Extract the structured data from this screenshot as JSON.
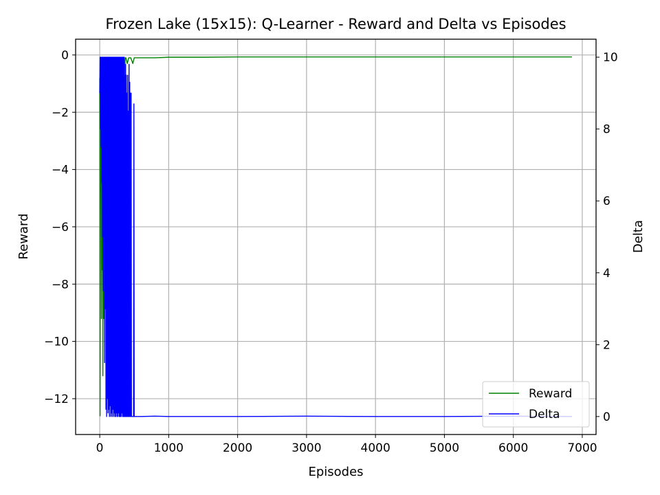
{
  "chart_data": {
    "type": "line",
    "title": "Frozen Lake (15x15): Q-Learner - Reward and Delta vs Episodes",
    "xlabel": "Episodes",
    "ylabel": "Reward",
    "y2label": "Delta",
    "xlim": [
      -350,
      7200
    ],
    "ylim": [
      -13.25,
      0.55
    ],
    "y2lim": [
      -0.5,
      10.5
    ],
    "xticks": [
      0,
      1000,
      2000,
      3000,
      4000,
      5000,
      6000,
      7000
    ],
    "yticks": [
      0,
      -2,
      -4,
      -6,
      -8,
      -10,
      -12
    ],
    "y2ticks": [
      0,
      2,
      4,
      6,
      8,
      10
    ],
    "grid": true,
    "legend_position": "lower-right",
    "series": [
      {
        "name": "Reward",
        "axis": "left",
        "color": "#008000",
        "x": [
          0,
          5,
          10,
          15,
          20,
          25,
          30,
          35,
          40,
          45,
          50,
          55,
          60,
          65,
          70,
          75,
          80,
          85,
          90,
          95,
          100,
          110,
          120,
          130,
          140,
          150,
          160,
          170,
          180,
          190,
          200,
          220,
          240,
          260,
          280,
          300,
          320,
          340,
          360,
          370,
          380,
          400,
          420,
          450,
          480,
          500,
          600,
          800,
          1000,
          1500,
          2000,
          3000,
          4000,
          5000,
          6000,
          6850
        ],
        "values": [
          -0.8,
          -12.6,
          -1.3,
          -4.5,
          -0.2,
          -9.2,
          -1.0,
          -7.5,
          -0.2,
          -11.2,
          -4.0,
          -0.1,
          -9.2,
          -0.3,
          -4.5,
          -0.1,
          -0.1,
          -0.1,
          -0.1,
          -0.1,
          -0.1,
          -0.1,
          -0.1,
          -0.1,
          -0.1,
          -0.1,
          -0.1,
          -0.1,
          -0.1,
          -0.1,
          -0.1,
          -0.1,
          -0.1,
          -0.1,
          -0.1,
          -0.1,
          -0.1,
          -0.1,
          -0.7,
          -0.1,
          -0.1,
          -0.3,
          -0.1,
          -0.1,
          -0.3,
          -0.1,
          -0.1,
          -0.1,
          -0.08,
          -0.08,
          -0.07,
          -0.07,
          -0.07,
          -0.07,
          -0.07,
          -0.07
        ]
      },
      {
        "name": "Delta",
        "axis": "right",
        "color": "#0000ff",
        "x": [
          0,
          5,
          10,
          15,
          20,
          25,
          30,
          35,
          40,
          45,
          50,
          55,
          60,
          65,
          70,
          75,
          80,
          85,
          90,
          95,
          100,
          105,
          110,
          115,
          120,
          125,
          130,
          135,
          140,
          145,
          150,
          155,
          160,
          165,
          170,
          175,
          180,
          185,
          190,
          195,
          200,
          205,
          210,
          215,
          220,
          225,
          230,
          235,
          240,
          245,
          250,
          255,
          260,
          265,
          270,
          275,
          280,
          285,
          290,
          295,
          300,
          305,
          310,
          315,
          320,
          325,
          330,
          335,
          340,
          345,
          350,
          355,
          360,
          365,
          370,
          375,
          380,
          385,
          390,
          395,
          400,
          405,
          410,
          415,
          420,
          425,
          430,
          435,
          440,
          445,
          450,
          455,
          460,
          470,
          480,
          490,
          495,
          500,
          505,
          520,
          600,
          800,
          1000,
          2000,
          3000,
          4000,
          5000,
          6000,
          6850
        ],
        "values": [
          9.0,
          10.0,
          8.0,
          10.0,
          7.5,
          10.0,
          6.5,
          10.0,
          5.0,
          10.0,
          3.5,
          10.0,
          5.0,
          10.0,
          1.5,
          10.0,
          3.0,
          10.0,
          0.2,
          10.0,
          0.0,
          10.0,
          0.5,
          10.0,
          0.1,
          10.0,
          0.2,
          10.0,
          0.0,
          10.0,
          0.3,
          10.0,
          0.0,
          10.0,
          0.1,
          10.0,
          0.0,
          10.0,
          0.2,
          10.0,
          0.0,
          10.0,
          0.1,
          10.0,
          0.0,
          10.0,
          0.0,
          10.0,
          0.1,
          10.0,
          0.0,
          10.0,
          0.0,
          10.0,
          0.1,
          10.0,
          0.0,
          10.0,
          0.0,
          10.0,
          0.0,
          10.0,
          0.0,
          10.0,
          0.1,
          10.0,
          0.0,
          10.0,
          0.0,
          10.0,
          0.0,
          10.0,
          0.0,
          9.5,
          0.0,
          9.8,
          0.0,
          9.5,
          0.0,
          9.0,
          0.0,
          9.5,
          0.0,
          8.5,
          0.0,
          9.8,
          0.0,
          9.3,
          0.0,
          9.0,
          0.0,
          9.0,
          0.0,
          0.0,
          0.0,
          0.0,
          8.7,
          0.0,
          0.0,
          0.0,
          0.0,
          0.01,
          0.0,
          0.0,
          0.01,
          0.0,
          0.0,
          0.01,
          0.0
        ]
      }
    ]
  }
}
